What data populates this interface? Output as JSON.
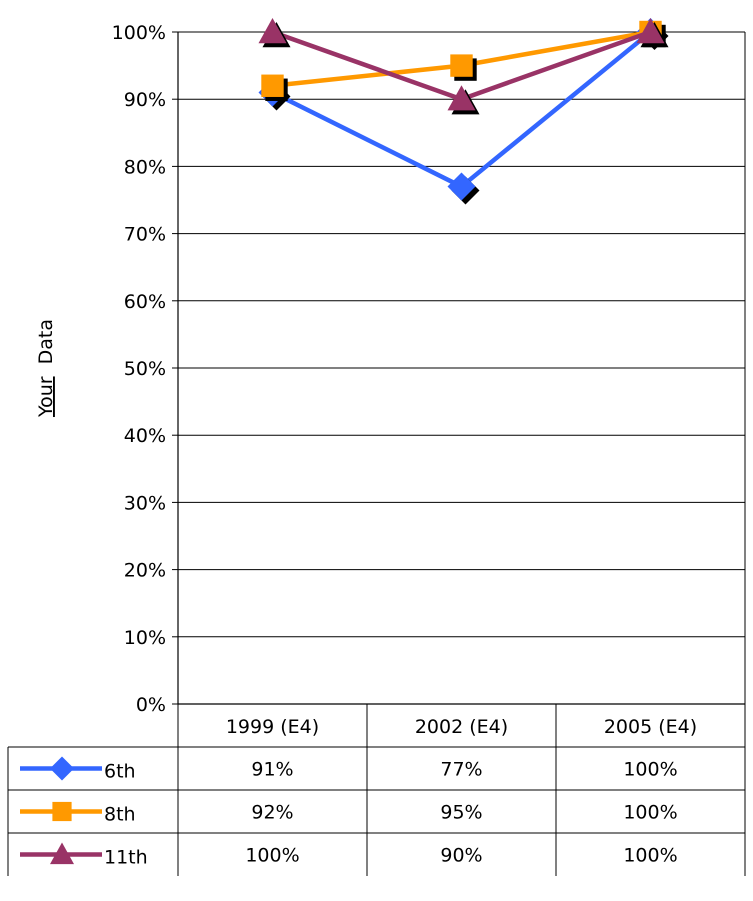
{
  "chart_data": {
    "type": "line",
    "title": "",
    "xlabel": "",
    "ylabel_underlined": "Your",
    "ylabel_rest": "Data",
    "categories": [
      "1999 (E4)",
      "2002 (E4)",
      "2005 (E4)"
    ],
    "ylim": [
      0,
      1
    ],
    "yticks": [
      "0%",
      "10%",
      "20%",
      "30%",
      "40%",
      "50%",
      "60%",
      "70%",
      "80%",
      "90%",
      "100%"
    ],
    "grid": true,
    "legend_placement": "data-table",
    "series": [
      {
        "name": "6th",
        "values": [
          0.91,
          0.77,
          1.0
        ],
        "labels": [
          "91%",
          "77%",
          "100%"
        ],
        "color": "#3366ff",
        "marker": "diamond"
      },
      {
        "name": "8th",
        "values": [
          0.92,
          0.95,
          1.0
        ],
        "labels": [
          "92%",
          "95%",
          "100%"
        ],
        "color": "#ff9900",
        "marker": "square"
      },
      {
        "name": "11th",
        "values": [
          1.0,
          0.9,
          1.0
        ],
        "labels": [
          "100%",
          "90%",
          "100%"
        ],
        "color": "#993366",
        "marker": "triangle"
      }
    ]
  }
}
